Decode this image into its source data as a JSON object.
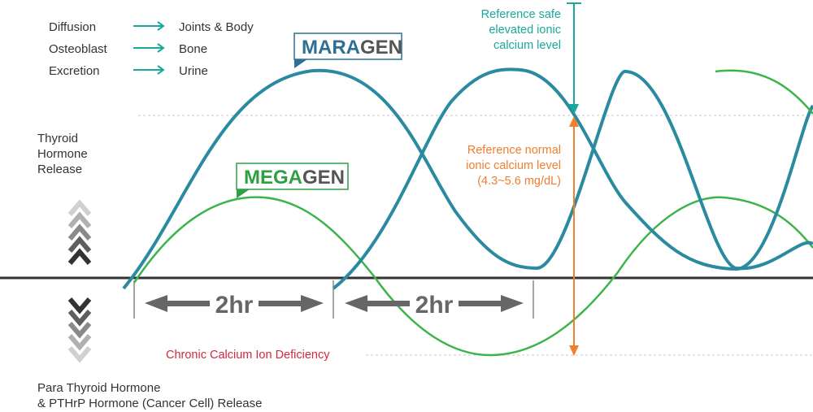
{
  "legend": [
    {
      "from": "Diffusion",
      "to": "Joints & Body"
    },
    {
      "from": "Osteoblast",
      "to": "Bone"
    },
    {
      "from": "Excretion",
      "to": "Urine"
    }
  ],
  "upper_label": [
    "Thyroid",
    "Hormone",
    "Release"
  ],
  "lower_label": [
    "Para Thyroid Hormone",
    "& PTHrP Hormone (Cancer Cell) Release"
  ],
  "maragen": {
    "part1": "MARA",
    "part2": "GEN"
  },
  "megagen": {
    "part1": "MEGA",
    "part2": "GEN"
  },
  "safe_label": [
    "Reference safe",
    "elevated ionic",
    "calcium level"
  ],
  "normal_label": [
    "Reference normal",
    "ionic calcium level",
    "(4.3~5.6 mg/dL)"
  ],
  "deficiency_label": "Chronic Calcium Ion Deficiency",
  "interval_1": "2hr",
  "interval_2": "2hr",
  "colors": {
    "maragen_curve": "#2a7d9c",
    "maragen_text": "#2f6f93",
    "megagen_curve": "#3cb44a",
    "megagen_text": "#2ea043",
    "teal": "#1aa89c",
    "orange": "#f07f2e",
    "red": "#d0283c",
    "gray_text": "#555555",
    "baseline": "#333333"
  }
}
